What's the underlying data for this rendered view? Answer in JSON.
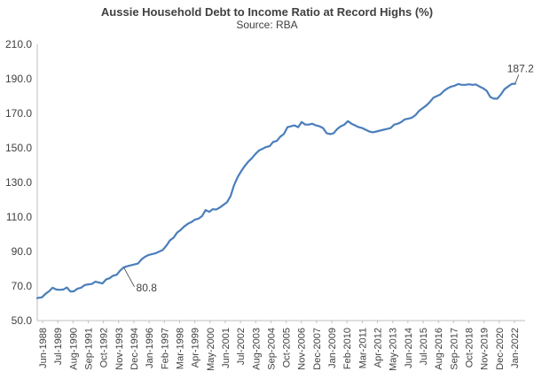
{
  "chart_data": {
    "type": "line",
    "title": "Aussie Household Debt to Income Ratio at Record Highs (%)",
    "subtitle": "Source: RBA",
    "xlabel": "",
    "ylabel": "",
    "ylim": [
      50,
      210
    ],
    "yticks": [
      "210.0",
      "190.0",
      "170.0",
      "150.0",
      "130.0",
      "110.0",
      "90.0",
      "70.0",
      "50.0"
    ],
    "xticks": [
      "Jun-1988",
      "Jul-1989",
      "Aug-1990",
      "Sep-1991",
      "Oct-1992",
      "Nov-1993",
      "Dec-1994",
      "Jan-1996",
      "Feb-1997",
      "Mar-1998",
      "Apr-1999",
      "May-2000",
      "Jun-2001",
      "Jul-2002",
      "Aug-2003",
      "Sep-2004",
      "Oct-2005",
      "Nov-2006",
      "Dec-2007",
      "Jan-2009",
      "Feb-2010",
      "Mar-2011",
      "Apr-2012",
      "May-2013",
      "Jun-2014",
      "Jul-2015",
      "Aug-2016",
      "Sep-2017",
      "Oct-2018",
      "Nov-2019",
      "Dec-2020",
      "Jan-2022"
    ],
    "grid": false,
    "line_color": "#4a7ebb",
    "series": [
      {
        "x": [
          1988.42,
          1988.75,
          1989.0,
          1989.25,
          1989.5,
          1989.75,
          1990.0,
          1990.25,
          1990.5,
          1990.75,
          1991.0,
          1991.25,
          1991.5,
          1991.75,
          1992.0,
          1992.25,
          1992.5,
          1992.75,
          1993.0,
          1993.25,
          1993.5,
          1993.75,
          1994.0,
          1994.25,
          1994.5,
          1994.75,
          1995.0,
          1995.25,
          1995.5,
          1995.75,
          1996.0,
          1996.25,
          1996.5,
          1996.75,
          1997.0,
          1997.25,
          1997.5,
          1997.75,
          1998.0,
          1998.25,
          1998.5,
          1998.75,
          1999.0,
          1999.25,
          1999.5,
          1999.75,
          2000.0,
          2000.25,
          2000.5,
          2000.75,
          2001.0,
          2001.25,
          2001.5,
          2001.75,
          2002.0,
          2002.25,
          2002.5,
          2002.75,
          2003.0,
          2003.25,
          2003.5,
          2003.75,
          2004.0,
          2004.25,
          2004.5,
          2004.75,
          2005.0,
          2005.25,
          2005.5,
          2005.75,
          2006.0,
          2006.25,
          2006.5,
          2006.75,
          2007.0,
          2007.25,
          2007.5,
          2007.75,
          2008.0,
          2008.25,
          2008.5,
          2008.75,
          2009.0,
          2009.25,
          2009.5,
          2009.75,
          2010.0,
          2010.25,
          2010.5,
          2010.75,
          2011.0,
          2011.25,
          2011.5,
          2011.75,
          2012.0,
          2012.25,
          2012.5,
          2012.75,
          2013.0,
          2013.25,
          2013.5,
          2013.75,
          2014.0,
          2014.25,
          2014.5,
          2014.75,
          2015.0,
          2015.25,
          2015.5,
          2015.75,
          2016.0,
          2016.25,
          2016.5,
          2016.75,
          2017.0,
          2017.25,
          2017.5,
          2017.75,
          2018.0,
          2018.25,
          2018.5,
          2018.75,
          2019.0,
          2019.25,
          2019.5,
          2019.75,
          2020.0,
          2020.25,
          2020.5,
          2020.75,
          2021.0,
          2021.25,
          2021.5,
          2021.75,
          2022.0
        ],
        "values": [
          63.0,
          63.5,
          65.5,
          67.0,
          69.0,
          68.0,
          67.8,
          68.0,
          69.2,
          66.8,
          67.0,
          68.5,
          69.0,
          70.5,
          71.0,
          71.2,
          72.5,
          72.0,
          71.5,
          73.8,
          74.5,
          76.0,
          76.5,
          79.0,
          80.8,
          81.5,
          82.0,
          82.5,
          83.0,
          85.5,
          87.0,
          88.0,
          88.5,
          89.0,
          90.0,
          91.0,
          93.5,
          96.5,
          98.0,
          101.0,
          102.5,
          104.5,
          106.0,
          107.0,
          108.5,
          109.0,
          110.5,
          114.0,
          113.0,
          114.5,
          114.3,
          115.5,
          117.0,
          118.5,
          122.0,
          128.5,
          133.0,
          136.5,
          139.5,
          142.0,
          144.0,
          146.5,
          148.5,
          149.5,
          150.5,
          151.0,
          153.5,
          154.0,
          156.5,
          158.0,
          162.0,
          162.5,
          163.0,
          162.0,
          165.0,
          163.5,
          163.5,
          164.0,
          163.0,
          162.5,
          161.5,
          158.5,
          158.0,
          158.5,
          161.0,
          162.5,
          163.5,
          165.5,
          164.0,
          163.0,
          162.0,
          161.5,
          160.5,
          159.5,
          159.0,
          159.5,
          160.0,
          160.5,
          161.0,
          161.5,
          163.5,
          164.0,
          165.0,
          166.5,
          167.0,
          167.5,
          169.0,
          171.5,
          173.0,
          174.5,
          176.5,
          179.0,
          180.0,
          181.0,
          183.0,
          184.5,
          185.5,
          186.0,
          187.0,
          186.5,
          186.5,
          186.8,
          186.5,
          186.7,
          185.5,
          184.5,
          183.0,
          179.5,
          178.5,
          178.5,
          181.0,
          184.0,
          185.5,
          187.0,
          187.2
        ]
      }
    ],
    "annotations": [
      {
        "x": 1994.5,
        "y": 80.8,
        "text": "80.8"
      },
      {
        "x": 2022.0,
        "y": 187.2,
        "text": "187.2"
      }
    ]
  }
}
